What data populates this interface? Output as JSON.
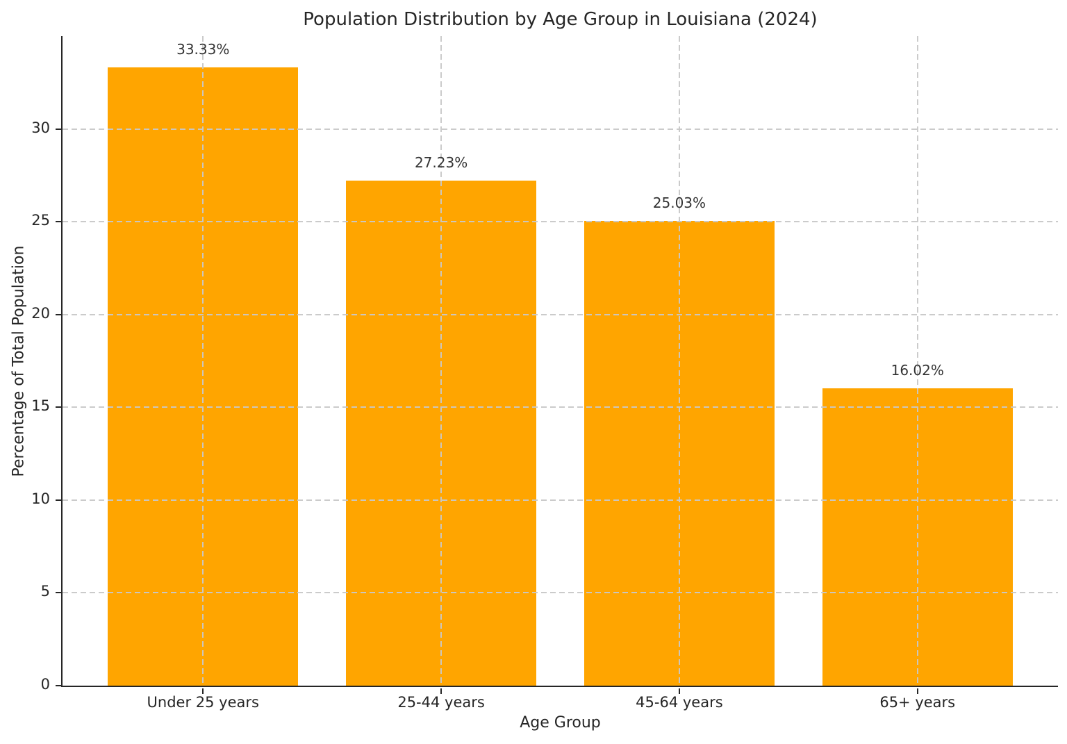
{
  "chart_data": {
    "type": "bar",
    "title": "Population Distribution by Age Group in Louisiana (2024)",
    "xlabel": "Age Group",
    "ylabel": "Percentage of Total Population",
    "categories": [
      "Under 25 years",
      "25-44 years",
      "45-64 years",
      "65+ years"
    ],
    "values": [
      33.33,
      27.23,
      25.03,
      16.02
    ],
    "value_labels": [
      "33.33%",
      "27.23%",
      "25.03%",
      "16.02%"
    ],
    "yticks": [
      0,
      5,
      10,
      15,
      20,
      25,
      30
    ],
    "ylim": [
      0,
      35
    ],
    "bar_color": "#FFA500",
    "grid_color": "#c8c8c8",
    "text_color": "#262626",
    "grid": "dashed, horizontal and vertical",
    "legend": "none"
  }
}
